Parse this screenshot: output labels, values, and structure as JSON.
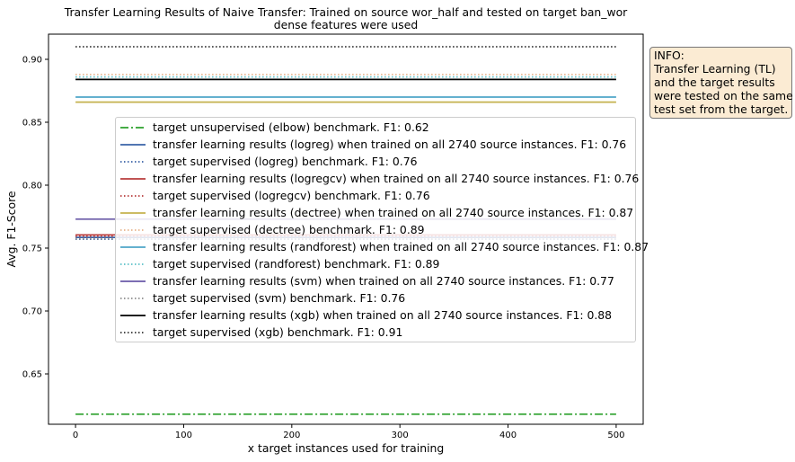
{
  "chart_data": {
    "type": "line",
    "title": "Transfer Learning Results of Naive Transfer: Trained on source wor_half and tested on target ban_wor",
    "subtitle": "dense features were used",
    "xlabel": "x target instances used for training",
    "ylabel": "Avg. F1-Score",
    "xlim": [
      -25,
      525
    ],
    "ylim": [
      0.61,
      0.92
    ],
    "x_ticks": [
      0,
      100,
      200,
      300,
      400,
      500
    ],
    "y_ticks": [
      0.65,
      0.7,
      0.75,
      0.8,
      0.85,
      0.9
    ],
    "x_tick_labels": [
      "0",
      "100",
      "200",
      "300",
      "400",
      "500"
    ],
    "y_tick_labels": [
      "0.65",
      "0.70",
      "0.75",
      "0.80",
      "0.85",
      "0.90"
    ],
    "grid": false,
    "legend_position": "center",
    "series": [
      {
        "name": "target unsupervised (elbow) benchmark. F1: 0.62",
        "x": [
          0,
          500
        ],
        "values": [
          0.618,
          0.618
        ],
        "color": "#2ca02c",
        "style": "dashdot"
      },
      {
        "name": "transfer learning results (logreg) when trained on all 2740 source instances. F1: 0.76",
        "x": [
          0,
          500
        ],
        "values": [
          0.7585,
          0.7585
        ],
        "color": "#3a62a7",
        "style": "solid"
      },
      {
        "name": "target supervised (logreg) benchmark. F1: 0.76",
        "x": [
          0,
          500
        ],
        "values": [
          0.757,
          0.757
        ],
        "color": "#3a62a7",
        "style": "dotted"
      },
      {
        "name": "transfer learning results (logregcv) when trained on all 2740 source instances. F1: 0.76",
        "x": [
          0,
          500
        ],
        "values": [
          0.7605,
          0.7605
        ],
        "color": "#b83c3c",
        "style": "solid"
      },
      {
        "name": "target supervised (logregcv) benchmark. F1: 0.76",
        "x": [
          0,
          500
        ],
        "values": [
          0.7595,
          0.7595
        ],
        "color": "#b83c3c",
        "style": "dotted"
      },
      {
        "name": "transfer learning results (dectree) when trained on all 2740 source instances. F1: 0.87",
        "x": [
          0,
          500
        ],
        "values": [
          0.866,
          0.866
        ],
        "color": "#c4b24e",
        "style": "solid"
      },
      {
        "name": "target supervised (dectree) benchmark. F1: 0.89",
        "x": [
          0,
          500
        ],
        "values": [
          0.888,
          0.888
        ],
        "color": "#e8b48c",
        "style": "dotted"
      },
      {
        "name": "transfer learning results (randforest) when trained on all 2740 source instances. F1: 0.87",
        "x": [
          0,
          500
        ],
        "values": [
          0.87,
          0.87
        ],
        "color": "#4ea6c8",
        "style": "solid"
      },
      {
        "name": "target supervised (randforest) benchmark. F1: 0.89",
        "x": [
          0,
          500
        ],
        "values": [
          0.886,
          0.886
        ],
        "color": "#5bc0c8",
        "style": "dotted"
      },
      {
        "name": "transfer learning results (svm) when trained on all 2740 source instances. F1: 0.77",
        "x": [
          0,
          500
        ],
        "values": [
          0.773,
          0.773
        ],
        "color": "#6a5aa8",
        "style": "solid"
      },
      {
        "name": "target supervised (svm) benchmark. F1: 0.76",
        "x": [
          0,
          500
        ],
        "values": [
          0.7575,
          0.7575
        ],
        "color": "#8c8c8c",
        "style": "dotted"
      },
      {
        "name": "transfer learning results (xgb) when trained on all 2740 source instances. F1: 0.88",
        "x": [
          0,
          500
        ],
        "values": [
          0.884,
          0.884
        ],
        "color": "#000000",
        "style": "solid"
      },
      {
        "name": "target supervised (xgb) benchmark. F1: 0.91",
        "x": [
          0,
          500
        ],
        "values": [
          0.91,
          0.91
        ],
        "color": "#333333",
        "style": "dotted"
      }
    ]
  },
  "info_box": {
    "lines": [
      "INFO:",
      "Transfer Learning (TL)",
      "and the target results",
      "were tested on the same",
      "test set from the target."
    ]
  }
}
